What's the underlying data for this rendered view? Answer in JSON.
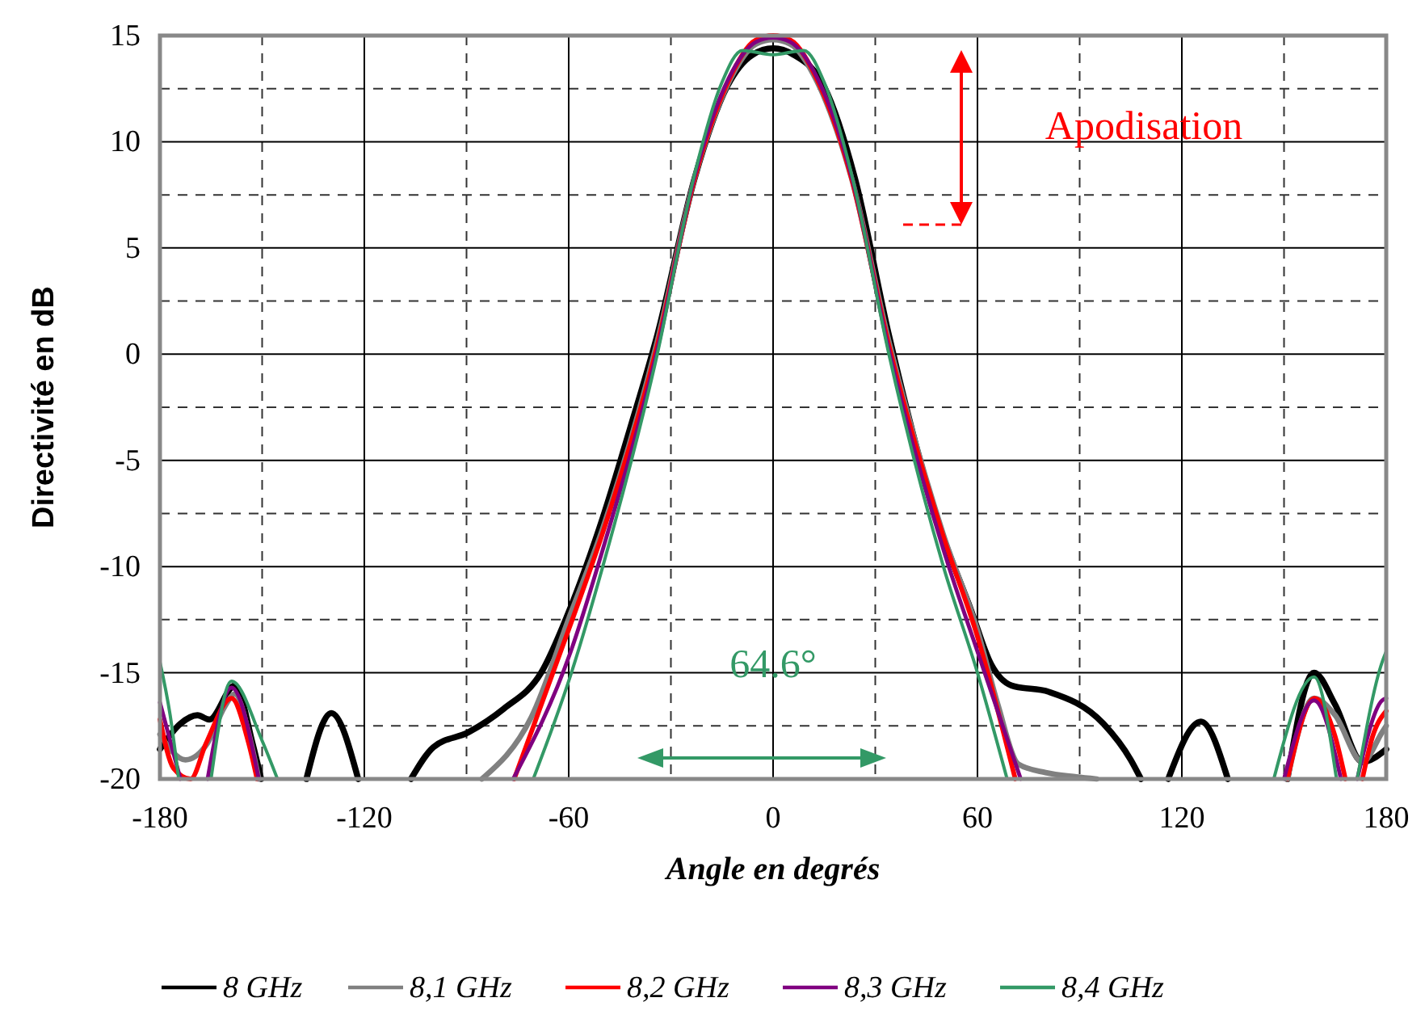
{
  "chart_data": {
    "type": "line",
    "xlabel": "Angle en degrés",
    "ylabel": "Directivité en dB",
    "xlim": [
      -180,
      180
    ],
    "xticks": [
      -180,
      -120,
      -60,
      0,
      60,
      120,
      180
    ],
    "ylim": [
      -20,
      15
    ],
    "yticks": [
      -20,
      -15,
      -10,
      -5,
      0,
      5,
      10,
      15
    ],
    "grid": true,
    "legend": "bottom",
    "marker": "none",
    "line_style": "solid",
    "annotations": [
      "Apodisation",
      "64.6°"
    ],
    "series": [
      {
        "name": "8 GHz",
        "color": "#000000",
        "x": [
          -180,
          -174,
          -169,
          -165.5,
          -158,
          -152.7,
          -150.3,
          -145,
          -137,
          -129.7,
          -121.8,
          -115,
          -106.3,
          -99.7,
          -89.4,
          -79.1,
          -68.1,
          -59.4,
          -50,
          -42,
          -34,
          -23,
          -13.5,
          -6,
          0,
          6,
          15,
          24,
          34,
          48,
          58,
          64,
          70,
          81,
          97,
          105,
          108,
          112,
          116,
          125.6,
          133.5,
          142,
          151,
          158.8,
          165,
          173,
          180
        ],
        "values": [
          -18.6,
          -17.4,
          -17,
          -17.2,
          -15.6,
          -18.4,
          -20,
          null,
          -20,
          -16.9,
          -20,
          null,
          -20,
          -18.5,
          -17.8,
          -16.7,
          -15,
          -11.9,
          -7.7,
          -3.5,
          0.9,
          8.3,
          12.6,
          14.1,
          14.4,
          14.1,
          12.6,
          8.3,
          0.9,
          -7.7,
          -12,
          -14.6,
          -15.6,
          -15.9,
          -17.4,
          -19.1,
          -20,
          null,
          -20,
          -17.3,
          -20,
          null,
          -20,
          -15,
          -16.5,
          -19.2,
          -18.6
        ]
      },
      {
        "name": "8,1 GHz",
        "color": "#808080",
        "x": [
          -180,
          -172.5,
          -166,
          -161,
          -158,
          -154,
          -151,
          -120,
          -85.5,
          -71,
          -59.4,
          -50,
          -34,
          -23,
          -13,
          -5,
          0,
          5,
          13,
          23,
          34,
          50,
          60,
          66,
          72,
          80,
          89,
          95,
          120,
          151,
          158.8,
          165,
          173,
          178.8,
          180
        ],
        "values": [
          -17.9,
          -19.1,
          -18.3,
          -16.6,
          -16,
          -17.8,
          -20,
          null,
          -20,
          -17.1,
          -12.2,
          -8.2,
          0.6,
          8.3,
          12.8,
          14.6,
          14.8,
          14.6,
          12.8,
          8.3,
          0.6,
          -8.5,
          -13,
          -16.5,
          -19.3,
          -19.7,
          -19.9,
          -20,
          null,
          -20,
          -16.2,
          -17,
          -19.2,
          -17.8,
          -17.5
        ]
      },
      {
        "name": "8,2 GHz",
        "color": "#ff0000",
        "x": [
          -180,
          -176,
          -171,
          -166.4,
          -159,
          -154,
          -151.5,
          -120,
          -76,
          -59.4,
          -50,
          -34,
          -23,
          -13,
          -5,
          0,
          5,
          13,
          23,
          34,
          50,
          60,
          71.1,
          110,
          151,
          159,
          165,
          168,
          170,
          173,
          176,
          180
        ],
        "values": [
          -17.2,
          -19.5,
          -20,
          -18.3,
          -16.2,
          -18.3,
          -20,
          null,
          -20,
          -12.7,
          -8.4,
          0.4,
          8.3,
          12.9,
          14.8,
          15,
          14.8,
          12.9,
          8.3,
          0.4,
          -8.6,
          -13.3,
          -20,
          null,
          -20,
          -16.2,
          -18,
          -20,
          null,
          -20,
          -18,
          -16.8
        ]
      },
      {
        "name": "8,3 GHz",
        "color": "#800080",
        "x": [
          -180,
          -174,
          -170,
          -166,
          -159,
          -151,
          -120,
          -76.3,
          -59.4,
          -50,
          -34,
          -23,
          -13,
          -5,
          0,
          5,
          13,
          23,
          34,
          50,
          60,
          72.7,
          110,
          150,
          158.8,
          166.7,
          169,
          171.5,
          178.8,
          180
        ],
        "values": [
          -16.4,
          -20,
          null,
          -20,
          -15.7,
          -20,
          null,
          -20,
          -14,
          -9.2,
          0.2,
          8.4,
          13,
          14.7,
          14.9,
          14.7,
          13,
          8.4,
          0.2,
          -9.2,
          -14,
          -20,
          null,
          -20,
          -16.3,
          -20,
          null,
          -20,
          -16.3,
          -16.2
        ]
      },
      {
        "name": "8,4 GHz",
        "color": "#339966",
        "x": [
          -180,
          -177,
          -174.5,
          -170,
          -165,
          -159,
          -150,
          -145.5,
          -120,
          -70.4,
          -59.4,
          -50,
          -34,
          -23,
          -15,
          -9,
          0,
          9,
          15,
          23,
          34,
          50,
          60,
          68.7,
          110,
          147,
          158.8,
          165.4,
          168,
          171.5,
          178.8,
          180
        ],
        "values": [
          -14.5,
          -17,
          -20,
          null,
          -20,
          -15.4,
          -18.2,
          -20,
          null,
          -20,
          -15.1,
          -10,
          0,
          8.5,
          12.8,
          14.3,
          14.1,
          14.3,
          12.8,
          8.5,
          0,
          -10,
          -15,
          -20,
          null,
          -20,
          -15.2,
          -20,
          null,
          -20,
          -14.5,
          -14
        ]
      }
    ]
  }
}
